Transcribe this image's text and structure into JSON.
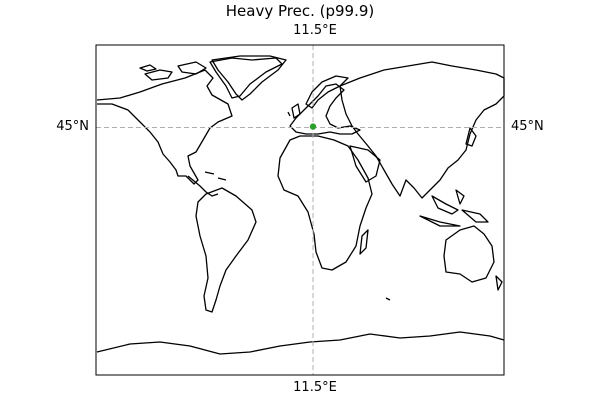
{
  "title": "Heavy Prec. (p99.9)",
  "map": {
    "projection": "PlateCarree",
    "extent": {
      "lon": [
        -180,
        180
      ],
      "lat": [
        -90,
        90
      ]
    },
    "gridlines": {
      "longitudes": [
        11.5
      ],
      "latitudes": [
        45
      ]
    },
    "labels": {
      "lon_top": "11.5°E",
      "lon_bottom": "11.5°E",
      "lat_left": "45°N",
      "lat_right": "45°N"
    },
    "marker": {
      "lon": 11.5,
      "lat": 45.5,
      "color": "#2ca02c"
    },
    "coastline_color": "#000000",
    "grid_color": "#b0b0b0"
  }
}
